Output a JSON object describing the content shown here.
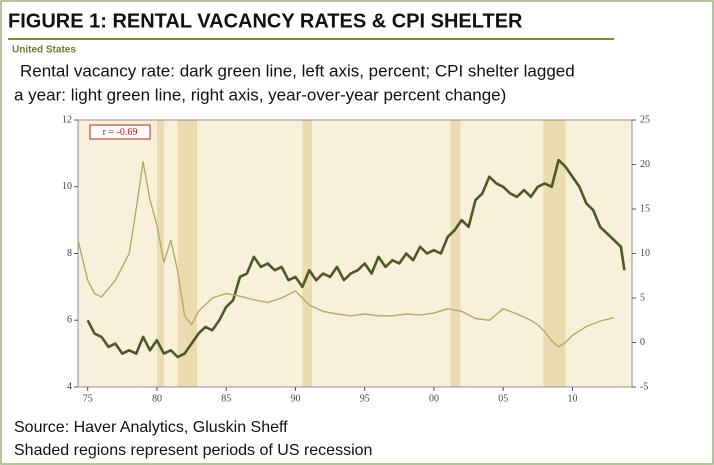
{
  "chart_data": {
    "type": "line",
    "title": "FIGURE 1:  RENTAL VACANCY RATES & CPI SHELTER",
    "region": "United States",
    "subtitle": [
      "Rental vacancy rate: dark green line, left axis, percent; CPI shelter lagged",
      "a year: light green line, right axis, year-over-year percent change)"
    ],
    "annotation": "r = -0.69",
    "source": [
      "Source: Haver Analytics, Gluskin Sheff",
      "Shaded regions represent periods of US recession"
    ],
    "xlim": [
      1974.3,
      2014.3
    ],
    "xticks": [
      {
        "value": 1975,
        "label": "75"
      },
      {
        "value": 1980,
        "label": "80"
      },
      {
        "value": 1985,
        "label": "85"
      },
      {
        "value": 1990,
        "label": "90"
      },
      {
        "value": 1995,
        "label": "95"
      },
      {
        "value": 2000,
        "label": "00"
      },
      {
        "value": 2005,
        "label": "05"
      },
      {
        "value": 2010,
        "label": "10"
      }
    ],
    "ylim": [
      4,
      12
    ],
    "yticks": [
      4,
      6,
      8,
      10,
      12
    ],
    "y2lim": [
      -5,
      25
    ],
    "y2ticks": [
      -5,
      0,
      5,
      10,
      15,
      20,
      25
    ],
    "recessions": [
      [
        1980.0,
        1980.5
      ],
      [
        1981.5,
        1982.9
      ],
      [
        1990.5,
        1991.2
      ],
      [
        2001.2,
        2001.9
      ],
      [
        2007.9,
        2009.5
      ]
    ],
    "series": [
      {
        "name": "Rental vacancy rate",
        "color": "#4b5a26",
        "axis": "y",
        "x": [
          1975,
          1975.5,
          1976,
          1976.5,
          1977,
          1977.5,
          1978,
          1978.5,
          1979,
          1979.5,
          1980,
          1980.5,
          1981,
          1981.5,
          1982,
          1982.5,
          1983,
          1983.5,
          1984,
          1984.5,
          1985,
          1985.5,
          1986,
          1986.5,
          1987,
          1987.5,
          1988,
          1988.5,
          1989,
          1989.5,
          1990,
          1990.5,
          1991,
          1991.5,
          1992,
          1992.5,
          1993,
          1993.5,
          1994,
          1994.5,
          1995,
          1995.5,
          1996,
          1996.5,
          1997,
          1997.5,
          1998,
          1998.5,
          1999,
          1999.5,
          2000,
          2000.5,
          2001,
          2001.5,
          2002,
          2002.5,
          2003,
          2003.5,
          2004,
          2004.5,
          2005,
          2005.5,
          2006,
          2006.5,
          2007,
          2007.5,
          2008,
          2008.5,
          2009,
          2009.5,
          2010,
          2010.5,
          2011,
          2011.5,
          2012,
          2012.5,
          2013,
          2013.5,
          2013.75
        ],
        "values": [
          6.0,
          5.6,
          5.5,
          5.2,
          5.3,
          5.0,
          5.1,
          5.0,
          5.5,
          5.1,
          5.4,
          5.0,
          5.1,
          4.9,
          5.0,
          5.3,
          5.6,
          5.8,
          5.7,
          6.0,
          6.4,
          6.6,
          7.3,
          7.4,
          7.9,
          7.6,
          7.7,
          7.5,
          7.6,
          7.2,
          7.3,
          7.0,
          7.5,
          7.2,
          7.4,
          7.3,
          7.6,
          7.2,
          7.4,
          7.5,
          7.7,
          7.4,
          7.9,
          7.6,
          7.8,
          7.7,
          8.0,
          7.8,
          8.2,
          8.0,
          8.1,
          8.0,
          8.5,
          8.7,
          9.0,
          8.8,
          9.6,
          9.8,
          10.3,
          10.1,
          10.0,
          9.8,
          9.7,
          9.9,
          9.7,
          10.0,
          10.1,
          10.0,
          10.8,
          10.6,
          10.3,
          10.0,
          9.5,
          9.3,
          8.8,
          8.6,
          8.4,
          8.2,
          7.5
        ]
      },
      {
        "name": "CPI shelter lagged a year",
        "color": "#b2ad62",
        "axis": "y2",
        "x": [
          1974.3,
          1975,
          1975.5,
          1976,
          1977,
          1978,
          1978.5,
          1979,
          1979.5,
          1980,
          1980.5,
          1981,
          1981.5,
          1982,
          1982.5,
          1983,
          1984,
          1985,
          1986,
          1987,
          1988,
          1989,
          1990,
          1990.5,
          1991,
          1992,
          1993,
          1994,
          1995,
          1996,
          1997,
          1998,
          1999,
          2000,
          2001,
          2002,
          2003,
          2004,
          2005,
          2006,
          2007,
          2007.5,
          2008,
          2008.5,
          2009,
          2009.5,
          2010,
          2011,
          2012,
          2013
        ],
        "values": [
          11.5,
          7.0,
          5.5,
          5.1,
          7.0,
          10.0,
          15.0,
          20.3,
          16.0,
          13.2,
          9.0,
          11.5,
          8.0,
          3.0,
          2.0,
          3.5,
          5.0,
          5.5,
          5.2,
          4.8,
          4.5,
          5.0,
          5.8,
          5.0,
          4.2,
          3.5,
          3.2,
          3.0,
          3.2,
          3.0,
          3.0,
          3.2,
          3.1,
          3.3,
          3.8,
          3.5,
          2.7,
          2.5,
          3.8,
          3.2,
          2.5,
          2.0,
          1.2,
          0.2,
          -0.5,
          0.0,
          0.8,
          1.8,
          2.4,
          2.8
        ]
      }
    ]
  }
}
